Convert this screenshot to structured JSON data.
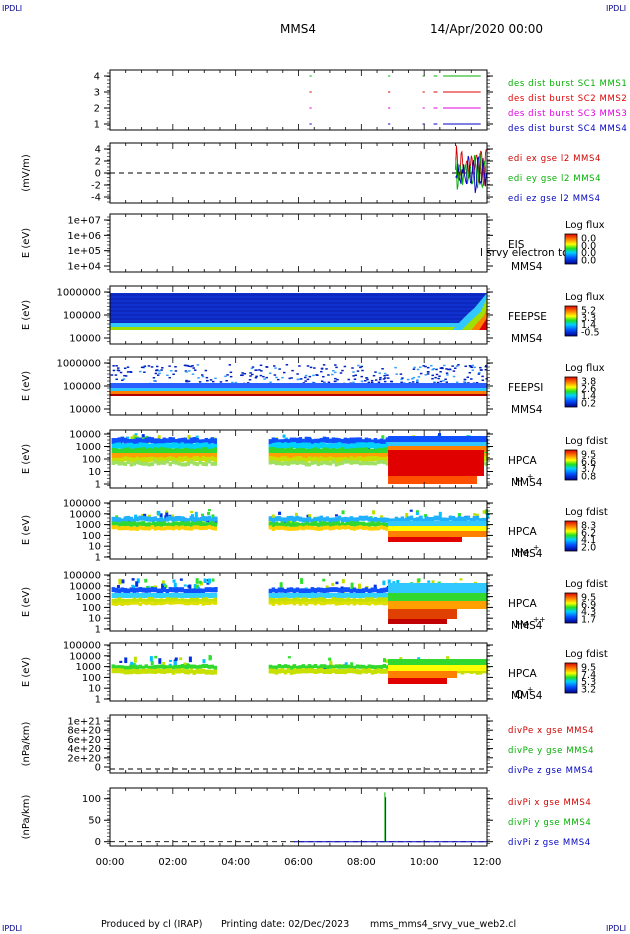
{
  "header": {
    "corner_label": "IPDLI",
    "spacecraft": "MMS4",
    "date": "14/Apr/2020 00:00"
  },
  "footer": {
    "producer": "Produced by cl (IRAP)",
    "printing_date": "Printing date: 02/Dec/2023",
    "filename": "mms_mms4_srvy_vue_web2.cl"
  },
  "colors": {
    "mms1": "#00b000",
    "mms2": "#e00000",
    "mms3": "#e000e0",
    "mms4": "#0000c0",
    "ex": "#d00000",
    "ey": "#00b000",
    "ez": "#0000c0"
  },
  "chart_data": [
    {
      "id": "burst",
      "type": "line",
      "yticks": [
        "4",
        "3",
        "2",
        "1"
      ],
      "series": [
        {
          "name": "des dist burst SC1 MMS1",
          "level": 4
        },
        {
          "name": "des dist burst SC2 MMS2",
          "level": 3
        },
        {
          "name": "des dist burst SC3 MMS3",
          "level": 2
        },
        {
          "name": "des dist burst SC4 MMS4",
          "level": 1
        }
      ],
      "intervals_hours": [
        [
          6.35,
          6.42
        ],
        [
          8.85,
          8.92
        ],
        [
          9.95,
          10.02
        ],
        [
          10.3,
          10.42
        ],
        [
          10.6,
          11.8
        ]
      ]
    },
    {
      "id": "edi",
      "type": "line",
      "ylabel": "(mV/m)",
      "yticks": [
        "4",
        "2",
        "0",
        "-2",
        "-4"
      ],
      "ylim": [
        -5,
        5
      ],
      "series": [
        {
          "name": "edi ex gse l2 MMS4"
        },
        {
          "name": "edi ey gse l2 MMS4"
        },
        {
          "name": "edi ez gse l2 MMS4"
        }
      ]
    },
    {
      "id": "eis",
      "type": "heatmap",
      "ylabel": "E (eV)",
      "yticks": [
        "1e+07",
        "1e+06",
        "1e+05",
        "1e+04"
      ],
      "instrument": [
        "EIS",
        "MMS4"
      ],
      "overlay_text": "l srvy electron to",
      "colorbar_title": "Log flux",
      "colorbar_ticks": [
        "0.0",
        "0.0",
        "0.0",
        "0.0"
      ]
    },
    {
      "id": "feepse",
      "type": "heatmap",
      "ylabel": "E (eV)",
      "yticks": [
        "1000000",
        "100000",
        "10000"
      ],
      "instrument": [
        "FEEPSE",
        "MMS4"
      ],
      "colorbar_title": "Log flux",
      "colorbar_ticks": [
        "5.2",
        "3.3",
        "1.4",
        "-0.5"
      ]
    },
    {
      "id": "feepsi",
      "type": "heatmap",
      "ylabel": "E (eV)",
      "yticks": [
        "1000000",
        "100000",
        "10000"
      ],
      "instrument": [
        "FEEPSI",
        "MMS4"
      ],
      "colorbar_title": "Log flux",
      "colorbar_ticks": [
        "3.8",
        "2.6",
        "1.4",
        "0.2"
      ]
    },
    {
      "id": "hpca_h",
      "type": "heatmap",
      "ylabel": "E (eV)",
      "yticks": [
        "10000",
        "1000",
        "100",
        "10",
        "1"
      ],
      "instrument": [
        "HPCA",
        "MMS4"
      ],
      "species": "H",
      "species_charge": "+",
      "colorbar_title": "Log fdist",
      "colorbar_ticks": [
        "9.5",
        "6.6",
        "3.7",
        "0.8"
      ]
    },
    {
      "id": "hpca_he1",
      "type": "heatmap",
      "ylabel": "E (eV)",
      "yticks": [
        "100000",
        "10000",
        "1000",
        "100",
        "10",
        "1"
      ],
      "instrument": [
        "HPCA",
        "MMS4"
      ],
      "species": "He",
      "species_charge": "+",
      "colorbar_title": "Log fdist",
      "colorbar_ticks": [
        "8.3",
        "6.2",
        "4.1",
        "2.0"
      ]
    },
    {
      "id": "hpca_he2",
      "type": "heatmap",
      "ylabel": "E (eV)",
      "yticks": [
        "100000",
        "10000",
        "1000",
        "100",
        "10",
        "1"
      ],
      "instrument": [
        "HPCA",
        "MMS4"
      ],
      "species": "He",
      "species_charge": "++",
      "colorbar_title": "Log fdist",
      "colorbar_ticks": [
        "9.5",
        "6.9",
        "4.3",
        "1.7"
      ]
    },
    {
      "id": "hpca_o",
      "type": "heatmap",
      "ylabel": "E (eV)",
      "yticks": [
        "100000",
        "10000",
        "1000",
        "100",
        "10",
        "1"
      ],
      "instrument": [
        "HPCA",
        "MMS4"
      ],
      "species": "O",
      "species_charge": "+",
      "colorbar_title": "Log fdist",
      "colorbar_ticks": [
        "9.5",
        "7.4",
        "5.3",
        "3.2"
      ]
    },
    {
      "id": "divpe",
      "type": "line",
      "ylabel": "(nPa/km)",
      "yticks": [
        "1e+21",
        "8e+20",
        "6e+20",
        "4e+20",
        "2e+20",
        "0"
      ],
      "ylim": [
        0,
        1e+21
      ],
      "series": [
        {
          "name": "divPe x gse MMS4"
        },
        {
          "name": "divPe y gse MMS4"
        },
        {
          "name": "divPe z gse MMS4"
        }
      ]
    },
    {
      "id": "divpi",
      "type": "line",
      "ylabel": "(nPa/km)",
      "yticks": [
        "100",
        "50",
        "0"
      ],
      "ylim": [
        -10,
        125
      ],
      "series": [
        {
          "name": "divPi x gse MMS4"
        },
        {
          "name": "divPi y gse MMS4"
        },
        {
          "name": "divPi z gse MMS4"
        }
      ],
      "spike": {
        "x_hours": 8.75,
        "y_peak": 115
      }
    }
  ],
  "xaxis": {
    "ticks": [
      "00:00",
      "02:00",
      "04:00",
      "06:00",
      "08:00",
      "10:00",
      "12:00"
    ],
    "xlim_hours": [
      0,
      12
    ]
  }
}
